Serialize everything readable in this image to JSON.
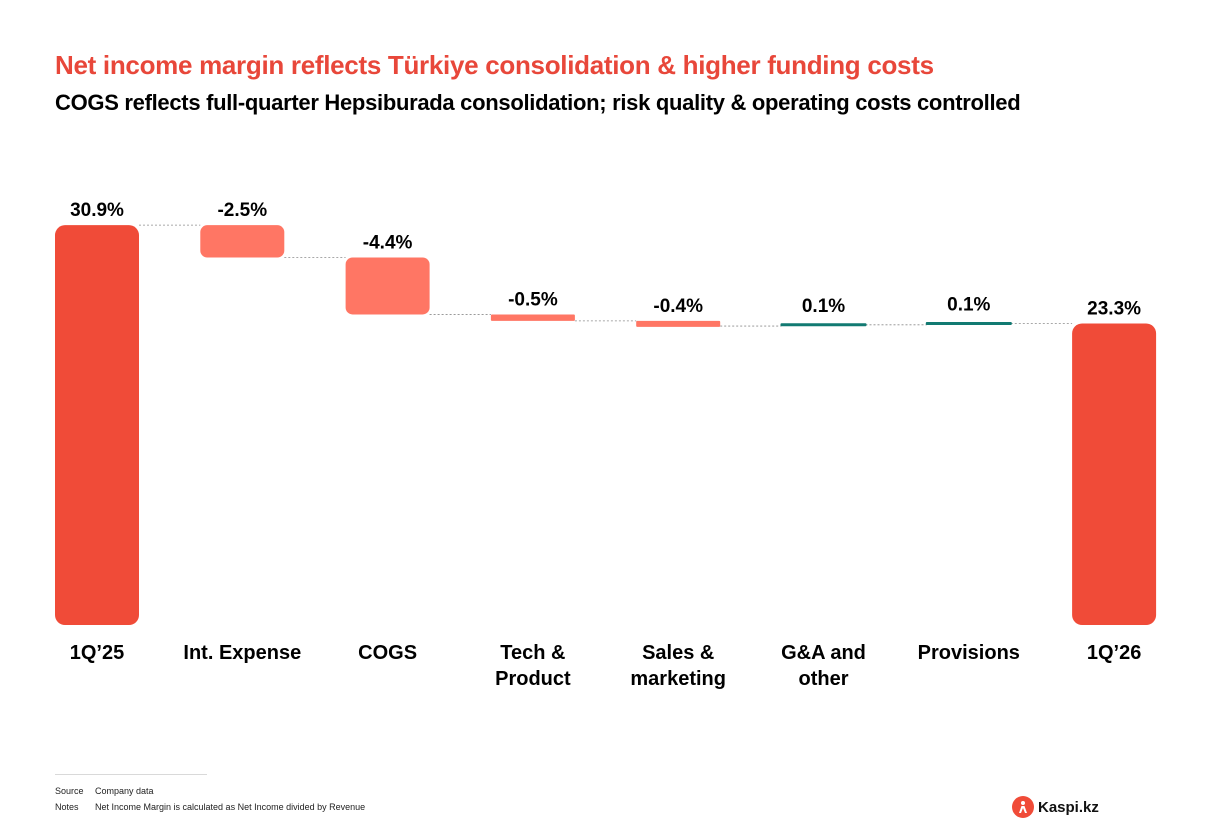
{
  "header": {
    "title": "Net income margin reflects Türkiye consolidation & higher funding costs",
    "subtitle": "COGS reflects full-quarter Hepsiburada consolidation; risk quality & operating costs controlled"
  },
  "colors": {
    "title": "#e8473a",
    "total_bar": "#f04b38",
    "negative_bar": "#ff7664",
    "positive_bar": "#127a72",
    "connector": "#8c8c8c",
    "text": "#000000"
  },
  "chart_data": {
    "type": "waterfall",
    "unit": "%",
    "ylim": [
      0,
      31.5
    ],
    "grid": false,
    "legend": "none",
    "steps": [
      {
        "label": "1Q’25",
        "value": 30.9,
        "value_label": "30.9%",
        "kind": "total"
      },
      {
        "label": "Int. Expense",
        "value": -2.5,
        "value_label": "-2.5%",
        "kind": "delta"
      },
      {
        "label": "COGS",
        "value": -4.4,
        "value_label": "-4.4%",
        "kind": "delta"
      },
      {
        "label": "Tech & Product",
        "value": -0.5,
        "value_label": "-0.5%",
        "kind": "delta"
      },
      {
        "label": "Sales & marketing",
        "value": -0.4,
        "value_label": "-0.4%",
        "kind": "delta"
      },
      {
        "label": "G&A and other",
        "value": 0.1,
        "value_label": "0.1%",
        "kind": "delta"
      },
      {
        "label": "Provisions",
        "value": 0.1,
        "value_label": "0.1%",
        "kind": "delta"
      },
      {
        "label": "1Q’26",
        "value": 23.3,
        "value_label": "23.3%",
        "kind": "total"
      }
    ]
  },
  "footer": {
    "source_key": "Source",
    "source_text": "Company data",
    "notes_key": "Notes",
    "notes_text": "Net Income Margin is calculated as Net Income divided by Revenue"
  },
  "logo": {
    "text": "Kaspi.kz",
    "icon": "kaspi-logo-icon"
  }
}
